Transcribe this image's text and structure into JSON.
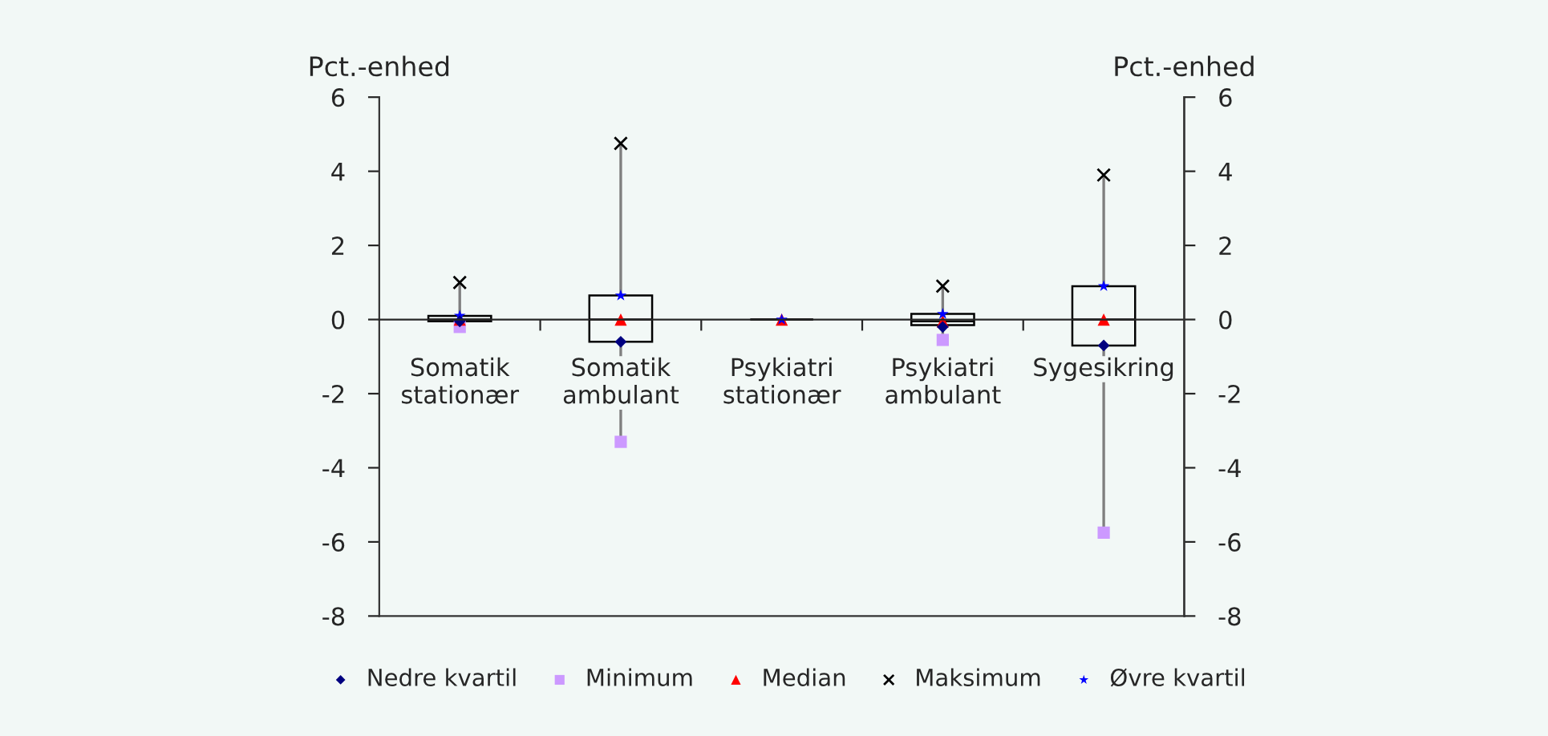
{
  "chart_data": {
    "type": "box",
    "ylabel": "Pct.-enhed",
    "y2label": "Pct.-enhed",
    "categories": [
      "Somatik\nstationær",
      "Somatik\nambulant",
      "Psykiatri\nstationær",
      "Psykiatri\nambulant",
      "Sygesikring"
    ],
    "boxes": [
      {
        "low": -0.2,
        "q1": -0.05,
        "median": 0,
        "q3": 0.1,
        "high": 1.0
      },
      {
        "low": -3.3,
        "q1": -0.6,
        "median": 0,
        "q3": 0.65,
        "high": 4.75
      },
      {
        "low": 0,
        "q1": 0,
        "median": 0,
        "q3": 0,
        "high": 0
      },
      {
        "low": -0.55,
        "q1": -0.15,
        "median": -0.05,
        "q3": 0.15,
        "high": 0.9
      },
      {
        "low": -5.75,
        "q1": -0.7,
        "median": 0,
        "q3": 0.9,
        "high": 3.9
      }
    ],
    "series": [
      {
        "type": "scatter",
        "name": "Nedre kvartil",
        "color": "#000080",
        "marker": "diamond",
        "x": [
          "Somatik\nstationær",
          "Somatik\nambulant",
          "Psykiatri\nstationær",
          "Psykiatri\nambulant",
          "Sygesikring"
        ],
        "values": [
          -0.05,
          -0.6,
          null,
          -0.2,
          -0.7
        ]
      },
      {
        "type": "scatter",
        "name": "Minimum",
        "color": "#cc99ff",
        "marker": "square",
        "x": [
          "Somatik\nstationær",
          "Somatik\nambulant",
          "Psykiatri\nstationær",
          "Psykiatri\nambulant",
          "Sygesikring"
        ],
        "values": [
          -0.2,
          -3.3,
          null,
          -0.55,
          -5.75
        ]
      },
      {
        "type": "scatter",
        "name": "Median",
        "color": "#ff0000",
        "marker": "triangle",
        "x": [
          "Somatik\nstationær",
          "Somatik\nambulant",
          "Psykiatri\nstationær",
          "Psykiatri\nambulant",
          "Sygesikring"
        ],
        "values": [
          0,
          0,
          0,
          -0.05,
          0
        ]
      },
      {
        "type": "scatter",
        "name": "Maksimum",
        "color": "#000000",
        "marker": "cross",
        "x": [
          "Somatik\nstationær",
          "Somatik\nambulant",
          "Psykiatri\nstationær",
          "Psykiatri\nambulant",
          "Sygesikring"
        ],
        "values": [
          1.0,
          4.75,
          null,
          0.9,
          3.9
        ]
      },
      {
        "type": "scatter",
        "name": "Øvre kvartil",
        "color": "#0000ff",
        "marker": "star",
        "x": [
          "Somatik\nstationær",
          "Somatik\nambulant",
          "Psykiatri\nstationær",
          "Psykiatri\nambulant",
          "Sygesikring"
        ],
        "values": [
          0.1,
          0.65,
          0,
          0.15,
          0.9
        ]
      }
    ],
    "ylim": [
      -8,
      6
    ],
    "yticks": [
      -8,
      -6,
      -4,
      -2,
      0,
      2,
      4,
      6
    ],
    "y2lim": [
      -8,
      6
    ],
    "y2ticks": [
      -8,
      -6,
      -4,
      -2,
      0,
      2,
      4,
      6
    ],
    "grid": false,
    "legend": "bottom"
  }
}
